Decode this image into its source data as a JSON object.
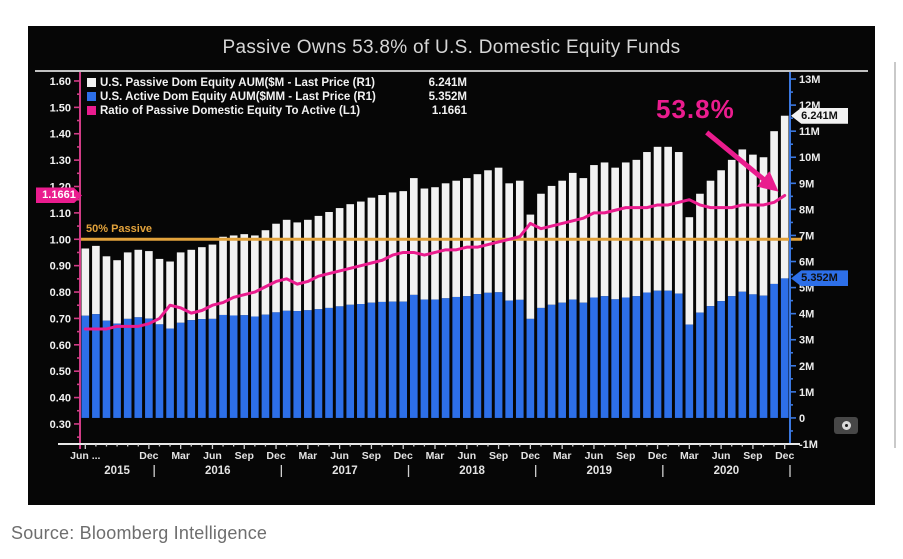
{
  "page": {
    "source": "Source: Bloomberg Intelligence"
  },
  "chart": {
    "title": "Passive Owns 53.8% of U.S. Domestic Equity Funds",
    "legend": [
      {
        "label": "U.S. Passive Dom Equity AUM($M - Last Price (R1)",
        "value": "6.241M",
        "color": "#f2f2f2"
      },
      {
        "label": "U.S. Active Dom Equity AUM($MM - Last Price (R1)",
        "value": "5.352M",
        "color": "#2d6fe8"
      },
      {
        "label": "Ratio of Passive Domestic Equity To Active (L1)",
        "value": "1.1661",
        "color": "#ea1c8e"
      }
    ],
    "annotation": {
      "text": "53.8%",
      "color": "#ea1c8e"
    },
    "threshold": {
      "label": "50% Passive",
      "value": 1.0,
      "color": "#e2a23b"
    },
    "badges": {
      "ratio": {
        "text": "1.1661",
        "bg": "#ea1c8e"
      },
      "passive": {
        "text": "6.241M",
        "bg": "#f2f2f2"
      },
      "active": {
        "text": "5.352M",
        "bg": "#2d6fe8"
      }
    }
  },
  "chart_data": {
    "type": "bar",
    "subtype": "stacked bars (right axis) with ratio line overlay (left axis)",
    "title": "Passive Owns 53.8% of U.S. Domestic Equity Funds",
    "grid": false,
    "legend_position": "top-left",
    "background": "#060606",
    "categories": [
      "2015-06",
      "2015-07",
      "2015-08",
      "2015-09",
      "2015-10",
      "2015-11",
      "2015-12",
      "2016-01",
      "2016-02",
      "2016-03",
      "2016-04",
      "2016-05",
      "2016-06",
      "2016-07",
      "2016-08",
      "2016-09",
      "2016-10",
      "2016-11",
      "2016-12",
      "2017-01",
      "2017-02",
      "2017-03",
      "2017-04",
      "2017-05",
      "2017-06",
      "2017-07",
      "2017-08",
      "2017-09",
      "2017-10",
      "2017-11",
      "2017-12",
      "2018-01",
      "2018-02",
      "2018-03",
      "2018-04",
      "2018-05",
      "2018-06",
      "2018-07",
      "2018-08",
      "2018-09",
      "2018-10",
      "2018-11",
      "2018-12",
      "2019-01",
      "2019-02",
      "2019-03",
      "2019-04",
      "2019-05",
      "2019-06",
      "2019-07",
      "2019-08",
      "2019-09",
      "2019-10",
      "2019-11",
      "2019-12",
      "2020-01",
      "2020-02",
      "2020-03",
      "2020-04",
      "2020-05",
      "2020-06",
      "2020-07",
      "2020-08",
      "2020-09",
      "2020-10",
      "2020-11",
      "2020-12"
    ],
    "series": [
      {
        "name": "U.S. Passive Dom Equity AUM ($M)",
        "kind": "bar-stack-top",
        "axis": "right",
        "color": "#f2f2f2",
        "last_price": "6.241M",
        "values": [
          2.58,
          2.62,
          2.47,
          2.43,
          2.55,
          2.59,
          2.59,
          2.51,
          2.57,
          2.7,
          2.7,
          2.76,
          2.85,
          3.0,
          3.07,
          3.11,
          3.11,
          3.24,
          3.4,
          3.49,
          3.4,
          3.47,
          3.58,
          3.68,
          3.77,
          3.86,
          3.93,
          4.03,
          4.1,
          4.19,
          4.24,
          4.48,
          4.26,
          4.31,
          4.41,
          4.46,
          4.53,
          4.6,
          4.7,
          4.78,
          4.5,
          4.57,
          4.0,
          4.38,
          4.56,
          4.68,
          4.86,
          4.78,
          5.08,
          5.13,
          5.05,
          5.18,
          5.23,
          5.39,
          5.52,
          5.52,
          5.43,
          4.12,
          4.56,
          4.81,
          5.02,
          5.23,
          5.46,
          5.36,
          5.31,
          5.86,
          6.241
        ]
      },
      {
        "name": "U.S. Active Dom Equity AUM ($MM)",
        "kind": "bar-stack-bottom",
        "axis": "right",
        "color": "#2d6fe8",
        "last_price": "5.352M",
        "values": [
          3.92,
          3.98,
          3.73,
          3.62,
          3.8,
          3.86,
          3.81,
          3.59,
          3.43,
          3.65,
          3.75,
          3.79,
          3.8,
          3.95,
          3.93,
          3.94,
          3.89,
          3.96,
          4.05,
          4.11,
          4.1,
          4.13,
          4.17,
          4.22,
          4.28,
          4.34,
          4.37,
          4.42,
          4.45,
          4.46,
          4.46,
          4.72,
          4.54,
          4.54,
          4.59,
          4.64,
          4.67,
          4.75,
          4.8,
          4.82,
          4.5,
          4.53,
          3.8,
          4.22,
          4.34,
          4.42,
          4.54,
          4.42,
          4.62,
          4.67,
          4.55,
          4.62,
          4.67,
          4.81,
          4.88,
          4.88,
          4.77,
          3.58,
          4.04,
          4.29,
          4.48,
          4.67,
          4.84,
          4.74,
          4.69,
          5.14,
          5.352
        ]
      },
      {
        "name": "Ratio of Passive Domestic Equity To Active",
        "kind": "line",
        "axis": "left",
        "color": "#ea1c8e",
        "last_price": "1.1661",
        "values": [
          0.66,
          0.66,
          0.66,
          0.67,
          0.67,
          0.67,
          0.68,
          0.7,
          0.75,
          0.74,
          0.72,
          0.73,
          0.75,
          0.76,
          0.78,
          0.79,
          0.8,
          0.82,
          0.84,
          0.85,
          0.83,
          0.84,
          0.86,
          0.87,
          0.88,
          0.89,
          0.9,
          0.91,
          0.92,
          0.94,
          0.95,
          0.95,
          0.94,
          0.95,
          0.96,
          0.96,
          0.97,
          0.97,
          0.98,
          0.99,
          1.0,
          1.01,
          1.06,
          1.04,
          1.05,
          1.06,
          1.07,
          1.08,
          1.1,
          1.1,
          1.11,
          1.12,
          1.12,
          1.12,
          1.13,
          1.13,
          1.14,
          1.15,
          1.13,
          1.12,
          1.12,
          1.12,
          1.13,
          1.13,
          1.13,
          1.14,
          1.1661
        ]
      }
    ],
    "left_axis": {
      "tick_labels": [
        "0.30",
        "0.40",
        "0.50",
        "0.60",
        "0.70",
        "0.80",
        "0.90",
        "1.00",
        "1.10",
        "1.20",
        "1.30",
        "1.40",
        "1.50",
        "1.60"
      ],
      "minor_step": 0.05,
      "color": "#d13c86",
      "label_color": "#f2f2f2"
    },
    "right_axis": {
      "tick_labels": [
        "-1M",
        "0",
        "1M",
        "2M",
        "3M",
        "4M",
        "5M",
        "6M",
        "7M",
        "8M",
        "9M",
        "10M",
        "11M",
        "12M",
        "13M"
      ],
      "minor_step": 0.5,
      "color": "#3b78e0",
      "label_color": "#ececec"
    },
    "ylim_left": [
      0.224,
      1.634
    ],
    "ylim_right": [
      -1,
      13.27
    ],
    "threshold_line": {
      "value": 1.0,
      "color": "#e2a23b",
      "label": "50% Passive"
    },
    "x_month_ticks": [
      {
        "index": 0,
        "label": "Jun ..."
      },
      {
        "index": 6,
        "label": "Dec"
      },
      {
        "index": 9,
        "label": "Mar"
      },
      {
        "index": 12,
        "label": "Jun"
      },
      {
        "index": 15,
        "label": "Sep"
      },
      {
        "index": 18,
        "label": "Dec"
      },
      {
        "index": 21,
        "label": "Mar"
      },
      {
        "index": 24,
        "label": "Jun"
      },
      {
        "index": 27,
        "label": "Sep"
      },
      {
        "index": 30,
        "label": "Dec"
      },
      {
        "index": 33,
        "label": "Mar"
      },
      {
        "index": 36,
        "label": "Jun"
      },
      {
        "index": 39,
        "label": "Sep"
      },
      {
        "index": 42,
        "label": "Dec"
      },
      {
        "index": 45,
        "label": "Mar"
      },
      {
        "index": 48,
        "label": "Jun"
      },
      {
        "index": 51,
        "label": "Sep"
      },
      {
        "index": 54,
        "label": "Dec"
      },
      {
        "index": 57,
        "label": "Mar"
      },
      {
        "index": 60,
        "label": "Jun"
      },
      {
        "index": 63,
        "label": "Sep"
      },
      {
        "index": 66,
        "label": "Dec"
      }
    ],
    "x_year_ticks": [
      {
        "index": 3,
        "label": "2015"
      },
      {
        "index": 12.5,
        "label": "2016"
      },
      {
        "index": 24.5,
        "label": "2017"
      },
      {
        "index": 36.5,
        "label": "2018"
      },
      {
        "index": 48.5,
        "label": "2019"
      },
      {
        "index": 60.5,
        "label": "2020"
      }
    ],
    "x_year_separators": [
      7,
      19,
      31,
      43,
      55,
      67
    ]
  }
}
